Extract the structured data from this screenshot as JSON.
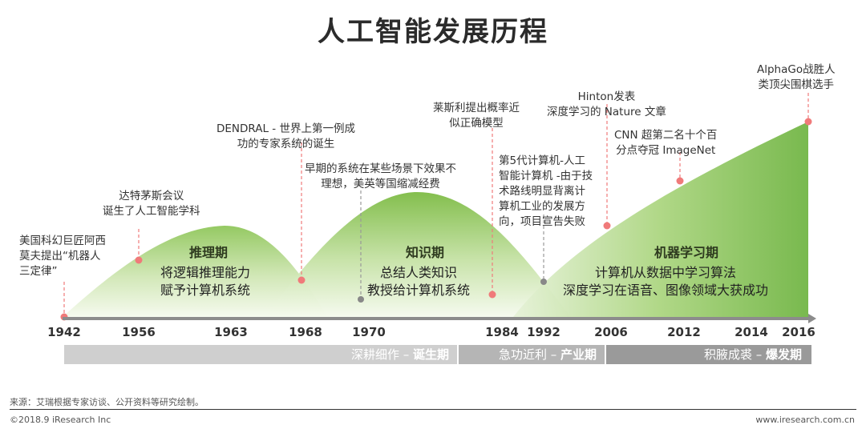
{
  "title": "人工智能发展历程",
  "phases": [
    {
      "name": "推理期",
      "desc": [
        "将逻辑推理能力",
        "赋予计算机系统"
      ]
    },
    {
      "name": "知识期",
      "desc": [
        "总结人类知识",
        "教授给计算机系统"
      ]
    },
    {
      "name": "机器学习期",
      "desc": [
        "计算机从数据中学习算法",
        "深度学习在语音、图像领域大获成功"
      ]
    }
  ],
  "events": [
    {
      "year": "1942",
      "lines": [
        "美国科幻巨匠阿西",
        "莫夫提出“机器人",
        "三定律”"
      ]
    },
    {
      "year": "1956",
      "lines": [
        "达特茅斯会议",
        "诞生了人工智能学科"
      ]
    },
    {
      "year": "1968",
      "lines": [
        "DENDRAL - 世界上第一例成",
        "功的专家系统的诞生"
      ]
    },
    {
      "year": "1970",
      "lines": [
        "早期的系统在某些场景下效果不",
        "理想，美英等国缩减经费"
      ]
    },
    {
      "year": "1984",
      "lines": [
        "莱斯利提出概率近",
        "似正确模型"
      ]
    },
    {
      "year": "1992",
      "lines": [
        "第5代计算机-人工",
        "智能计算机 -由于技",
        "术路线明显背离计",
        "算机工业的发展方",
        "向，项目宣告失败"
      ]
    },
    {
      "year": "2006",
      "lines": [
        "Hinton发表",
        "深度学习的 Nature 文章"
      ]
    },
    {
      "year": "2012",
      "lines": [
        "CNN 超第二名十个百",
        "分点夺冠 ImageNet"
      ]
    },
    {
      "year": "2016",
      "lines": [
        "AlphaGo战胜人",
        "类顶尖围棋选手"
      ]
    }
  ],
  "axis_years": [
    "1942",
    "1956",
    "1963",
    "1968",
    "1970",
    "1984",
    "1992",
    "2006",
    "2012",
    "2014",
    "2016"
  ],
  "eras": [
    {
      "label": "深耕细作 – ",
      "strong": "诞生期"
    },
    {
      "label": "急功近利 – ",
      "strong": "产业期"
    },
    {
      "label": "积腋成裘 – ",
      "strong": "爆发期"
    }
  ],
  "source": "来源：艾瑞根据专家访谈、公开资料等研究绘制。",
  "copyright": "©2018.9 iResearch Inc",
  "website": "www.iresearch.com.cn",
  "colors": {
    "marker": "#f07a7a",
    "gray_marker": "#888888",
    "green_dark": "#6db33f",
    "green_light": "#eef6e4"
  }
}
